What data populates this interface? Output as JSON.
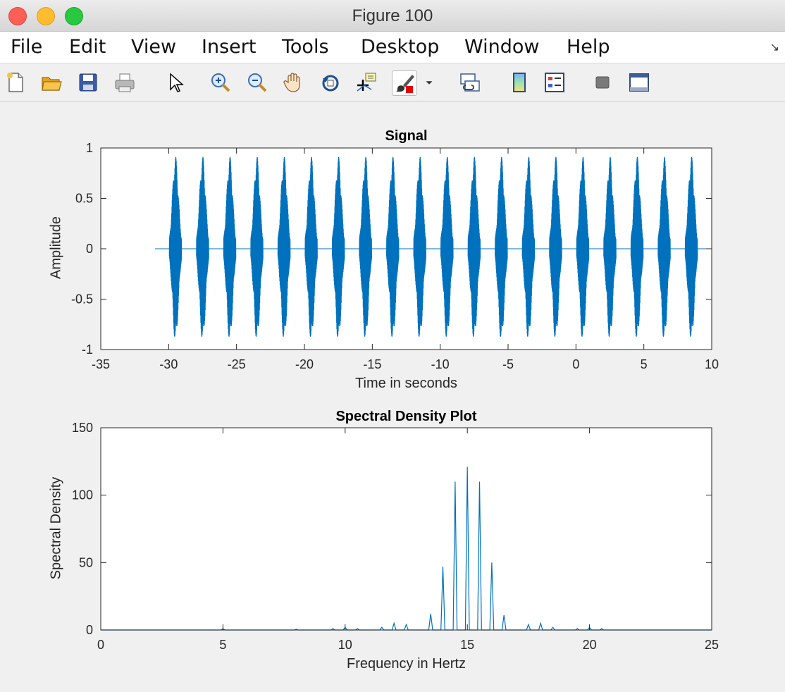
{
  "window": {
    "title": "Figure 100"
  },
  "menu": [
    "File",
    "Edit",
    "View",
    "Insert",
    "Tools",
    "Desktop",
    "Window",
    "Help"
  ],
  "toolbar": [
    {
      "name": "new-figure-icon"
    },
    {
      "name": "open-file-icon"
    },
    {
      "name": "save-icon"
    },
    {
      "name": "print-icon"
    },
    {
      "name": "edit-plot-arrow-icon"
    },
    {
      "name": "zoom-in-icon"
    },
    {
      "name": "zoom-out-icon"
    },
    {
      "name": "pan-hand-icon"
    },
    {
      "name": "rotate-3d-icon"
    },
    {
      "name": "data-cursor-icon"
    },
    {
      "name": "brush-icon"
    },
    {
      "name": "brush-dropdown-icon"
    },
    {
      "name": "link-plot-icon"
    },
    {
      "name": "colorbar-icon"
    },
    {
      "name": "legend-icon"
    },
    {
      "name": "hide-plot-tools-icon"
    },
    {
      "name": "show-plot-tools-icon"
    }
  ],
  "colors": {
    "line": "#0072bd"
  },
  "chart_data": [
    {
      "type": "line",
      "title": "Signal",
      "xlabel": "Time in seconds",
      "ylabel": "Amplitude",
      "xlim": [
        -35,
        10
      ],
      "ylim": [
        -1,
        1
      ],
      "xticks": [
        "-35",
        "-30",
        "-25",
        "-20",
        "-15",
        "-10",
        "-5",
        "0",
        "5",
        "10"
      ],
      "yticks": [
        "-1",
        "-0.5",
        "0",
        "0.5",
        "1"
      ],
      "series": [
        {
          "signal_start": -31,
          "signal_end": 10,
          "burst_centers": [
            -29.5,
            -27.5,
            -25.5,
            -23.5,
            -21.5,
            -19.5,
            -17.5,
            -15.5,
            -13.5,
            -11.5,
            -9.5,
            -7.5,
            -5.5,
            -3.5,
            -1.5,
            0.5,
            2.5,
            4.5,
            6.5,
            8.5
          ],
          "burst_half_width": 0.45,
          "peak_amplitude": 0.92
        }
      ],
      "grid": false
    },
    {
      "type": "line",
      "title": "Spectral Density Plot",
      "xlabel": "Frequency in Hertz",
      "ylabel": "Spectral Density",
      "xlim": [
        0,
        25
      ],
      "ylim": [
        0,
        150
      ],
      "xticks": [
        "0",
        "5",
        "10",
        "15",
        "20",
        "25"
      ],
      "yticks": [
        "0",
        "50",
        "100",
        "150"
      ],
      "peaks": [
        {
          "x": 5,
          "y": 1
        },
        {
          "x": 8,
          "y": 0.5
        },
        {
          "x": 9.5,
          "y": 1
        },
        {
          "x": 10,
          "y": 2
        },
        {
          "x": 10.5,
          "y": 1
        },
        {
          "x": 11.5,
          "y": 2
        },
        {
          "x": 12,
          "y": 5
        },
        {
          "x": 12.5,
          "y": 4
        },
        {
          "x": 13.5,
          "y": 12
        },
        {
          "x": 14,
          "y": 47
        },
        {
          "x": 14.5,
          "y": 110
        },
        {
          "x": 15,
          "y": 121
        },
        {
          "x": 15.5,
          "y": 110
        },
        {
          "x": 16,
          "y": 50
        },
        {
          "x": 16.5,
          "y": 11
        },
        {
          "x": 17.5,
          "y": 4
        },
        {
          "x": 18,
          "y": 5
        },
        {
          "x": 18.5,
          "y": 2
        },
        {
          "x": 19.5,
          "y": 1
        },
        {
          "x": 20,
          "y": 2
        },
        {
          "x": 20.5,
          "y": 1
        }
      ],
      "grid": false
    }
  ]
}
